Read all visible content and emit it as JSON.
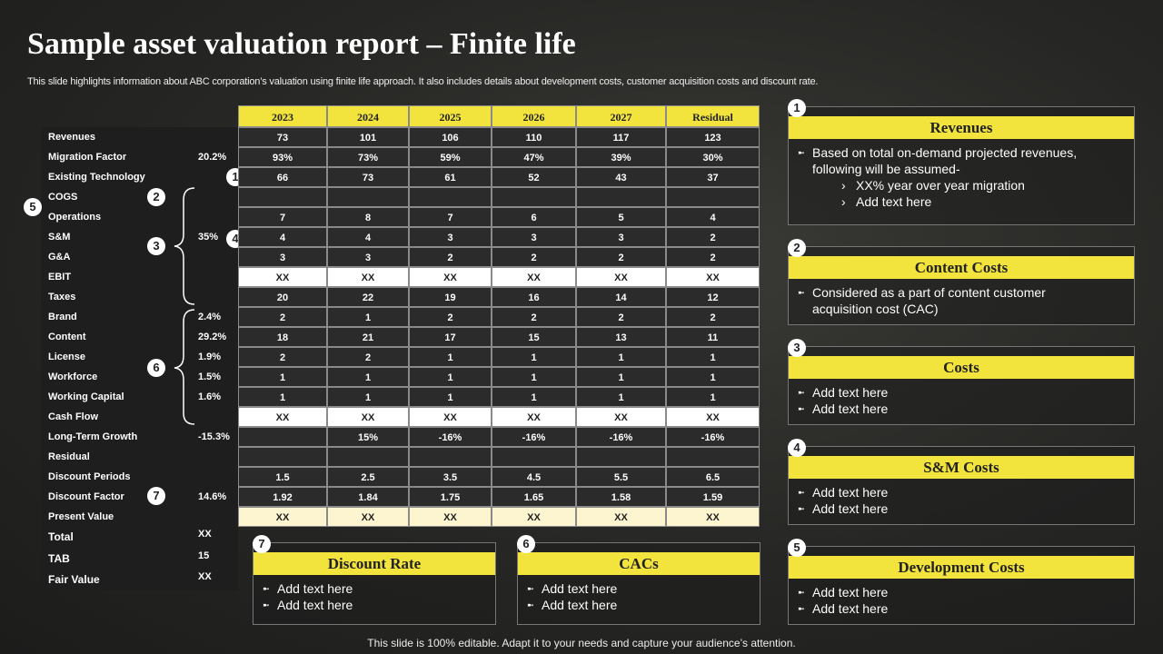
{
  "header": {
    "title": "Sample asset valuation report – Finite life",
    "subtitle": "This slide highlights information about ABC corporation’s valuation using finite life approach. It also includes details about development costs, customer acquisition costs and discount rate."
  },
  "table": {
    "columns": [
      "2023",
      "2024",
      "2025",
      "2026",
      "2027",
      "Residual"
    ],
    "rows": [
      {
        "label": "Revenues",
        "cells": [
          "73",
          "101",
          "106",
          "110",
          "117",
          "123"
        ]
      },
      {
        "label": "Migration Factor",
        "pct": "20.2%",
        "cells": [
          "93%",
          "73%",
          "59%",
          "47%",
          "39%",
          "30%"
        ]
      },
      {
        "label": "Existing Technology",
        "badges": [
          "1"
        ],
        "cells": [
          "66",
          "73",
          "61",
          "52",
          "43",
          "37"
        ]
      },
      {
        "label": "COGS",
        "badges": [
          "5",
          "2"
        ]
      },
      {
        "label": "Operations",
        "cells": [
          "7",
          "8",
          "7",
          "6",
          "5",
          "4"
        ]
      },
      {
        "label": "S&M",
        "pct": "35%",
        "badges": [
          "3",
          "4"
        ],
        "cells": [
          "4",
          "4",
          "3",
          "3",
          "3",
          "2"
        ]
      },
      {
        "label": "G&A",
        "cells": [
          "3",
          "3",
          "2",
          "2",
          "2",
          "2"
        ]
      },
      {
        "label": "EBIT",
        "cells": [
          "XX",
          "XX",
          "XX",
          "XX",
          "XX",
          "XX"
        ]
      },
      {
        "label": "Taxes",
        "cells": [
          "20",
          "22",
          "19",
          "16",
          "14",
          "12"
        ]
      },
      {
        "label": "Brand",
        "pct": "2.4%",
        "cells": [
          "2",
          "1",
          "2",
          "2",
          "2",
          "2"
        ]
      },
      {
        "label": "Content",
        "pct": "29.2%",
        "cells": [
          "18",
          "21",
          "17",
          "15",
          "13",
          "11"
        ]
      },
      {
        "label": "License",
        "pct": "1.9%",
        "badges": [
          "6"
        ],
        "cells": [
          "2",
          "2",
          "1",
          "1",
          "1",
          "1"
        ]
      },
      {
        "label": "Workforce",
        "pct": "1.5%",
        "cells": [
          "1",
          "1",
          "1",
          "1",
          "1",
          "1"
        ]
      },
      {
        "label": "Working Capital",
        "pct": "1.6%",
        "cells": [
          "1",
          "1",
          "1",
          "1",
          "1",
          "1"
        ]
      },
      {
        "label": "Cash Flow",
        "cells": [
          "XX",
          "XX",
          "XX",
          "XX",
          "XX",
          "XX"
        ]
      },
      {
        "label": "Long-Term Growth",
        "pct": "-15.3%",
        "cells": [
          null,
          "15%",
          "-16%",
          "-16%",
          "-16%",
          "-16%"
        ]
      },
      {
        "label": "Residual"
      },
      {
        "label": "Discount Periods",
        "cells": [
          "1.5",
          "2.5",
          "3.5",
          "4.5",
          "5.5",
          "6.5"
        ]
      },
      {
        "label": "Discount Factor",
        "pct": "14.6%",
        "badges": [
          "7"
        ],
        "cells": [
          "1.92",
          "1.84",
          "1.75",
          "1.65",
          "1.58",
          "1.59"
        ]
      },
      {
        "label": "Present Value",
        "cells": [
          "XX",
          "XX",
          "XX",
          "XX",
          "XX",
          "XX"
        ]
      }
    ],
    "totals": [
      {
        "label": "Total",
        "value": "XX"
      },
      {
        "label": "TAB",
        "value": "15"
      },
      {
        "label": "Fair Value",
        "value": "XX"
      }
    ]
  },
  "cards": [
    {
      "badge": "1",
      "title": "Revenues",
      "bullets": [
        "Based on total on-demand projected revenues, following will be assumed-"
      ],
      "sub_bullets": [
        "XX% year over year migration",
        "Add text here"
      ]
    },
    {
      "badge": "2",
      "title": "Content Costs",
      "bullets": [
        "Considered as a part of content customer acquisition cost (CAC)"
      ]
    },
    {
      "badge": "3",
      "title": "Costs",
      "bullets": [
        "Add text here",
        "Add text here"
      ]
    },
    {
      "badge": "4",
      "title": "S&M Costs",
      "bullets": [
        "Add text here",
        "Add text here"
      ]
    },
    {
      "badge": "5",
      "title": "Development Costs",
      "bullets": [
        "Add text here",
        "Add text here"
      ]
    },
    {
      "badge": "7",
      "title": "Discount Rate",
      "bullets": [
        "Add text here",
        "Add text here"
      ]
    },
    {
      "badge": "6",
      "title": "CACs",
      "bullets": [
        "Add text here",
        "Add text here"
      ]
    }
  ],
  "footer": "This slide is 100% editable. Adapt it to your needs and capture your audience’s attention."
}
